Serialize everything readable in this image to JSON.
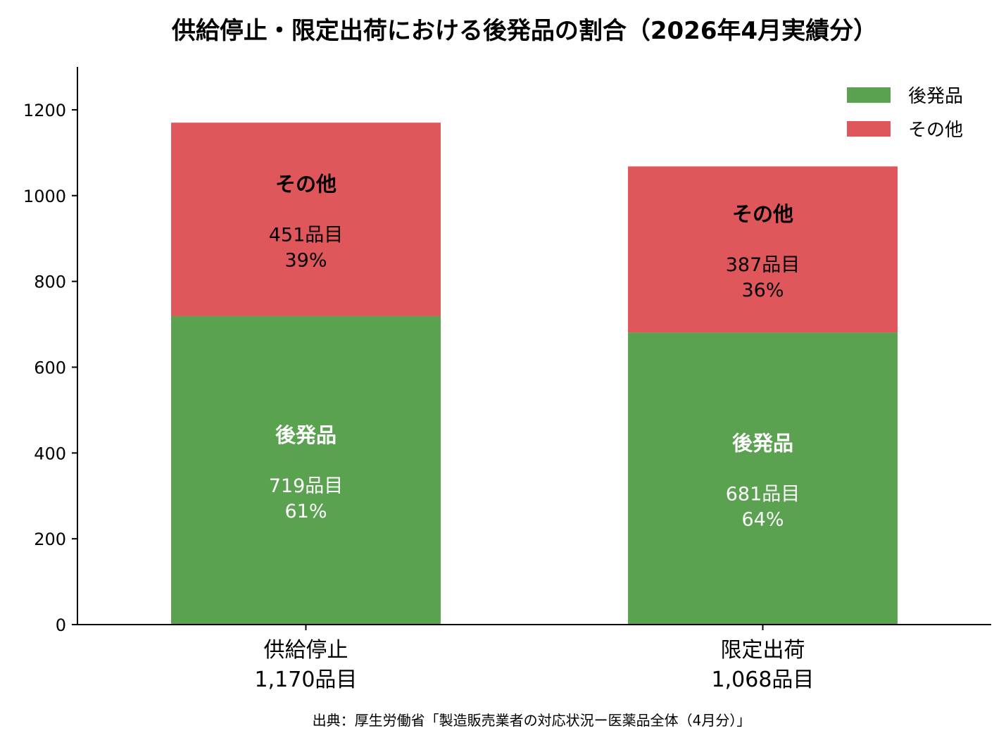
{
  "chart_data": {
    "type": "bar",
    "stacked": true,
    "title": "供給停止・限定出荷における後発品の割合（2026年4月実績分）",
    "categories": [
      "供給停止",
      "限定出荷"
    ],
    "category_subtitles": [
      "1,170品目",
      "1,068品目"
    ],
    "series": [
      {
        "name": "後発品",
        "color": "#5aa150",
        "values": [
          719,
          681
        ],
        "labels": [
          {
            "title": "後発品",
            "count": "719品目",
            "pct": "61%"
          },
          {
            "title": "後発品",
            "count": "681品目",
            "pct": "64%"
          }
        ]
      },
      {
        "name": "その他",
        "color": "#e0575b",
        "values": [
          451,
          387
        ],
        "labels": [
          {
            "title": "その他",
            "count": "451品目",
            "pct": "39%"
          },
          {
            "title": "その他",
            "count": "387品目",
            "pct": "36%"
          }
        ]
      }
    ],
    "ylim": [
      0,
      1300
    ],
    "yticks": [
      0,
      200,
      400,
      600,
      800,
      1000,
      1200
    ],
    "legend_position": "top-right",
    "grid": false,
    "source": "出典：厚生労働省「製造販売業者の対応状況ー医薬品全体（4月分）」"
  }
}
